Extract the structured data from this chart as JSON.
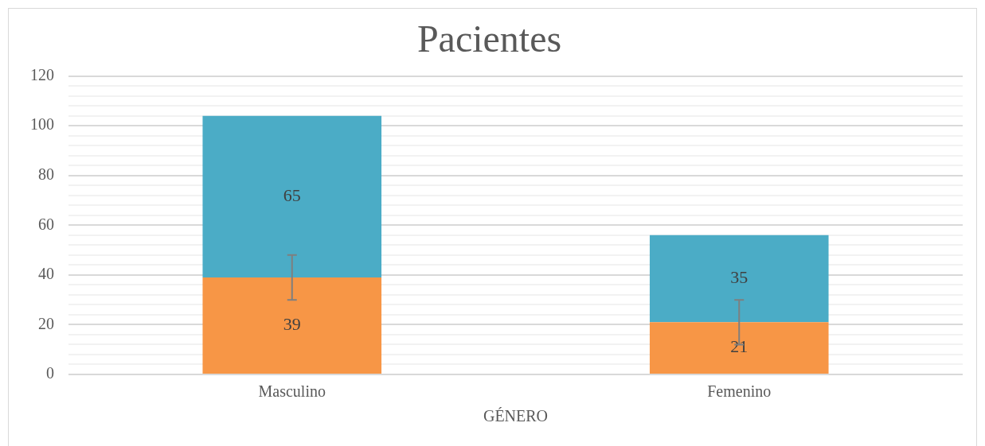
{
  "chart_data": {
    "type": "bar",
    "title": "Pacientes",
    "xlabel": "GÉNERO",
    "categories": [
      "Masculino",
      "Femenino"
    ],
    "stacked": true,
    "data_labels": true,
    "series": [
      {
        "color": "#f79646",
        "values": [
          39,
          21
        ],
        "errors": [
          9,
          9
        ]
      },
      {
        "color": "#4bacc6",
        "values": [
          65,
          35
        ]
      }
    ],
    "ylim": [
      0,
      120
    ],
    "yticks": [
      0,
      {
        "value": 4,
        "label": null
      },
      {
        "value": 8,
        "label": null
      },
      {
        "value": 12,
        "label": null
      },
      {
        "value": 16,
        "label": null
      },
      20,
      {
        "value": 24,
        "label": null
      },
      {
        "value": 28,
        "label": null
      },
      {
        "value": 32,
        "label": null
      },
      {
        "value": 36,
        "label": null
      },
      40,
      {
        "value": 44,
        "label": null
      },
      {
        "value": 48,
        "label": null
      },
      {
        "value": 52,
        "label": null
      },
      {
        "value": 56,
        "label": null
      },
      60,
      {
        "value": 64,
        "label": null
      },
      {
        "value": 68,
        "label": null
      },
      {
        "value": 72,
        "label": null
      },
      {
        "value": 76,
        "label": null
      },
      80,
      {
        "value": 84,
        "label": null
      },
      {
        "value": 88,
        "label": null
      },
      {
        "value": 92,
        "label": null
      },
      {
        "value": 96,
        "label": null
      },
      100,
      {
        "value": 104,
        "label": null
      },
      {
        "value": 108,
        "label": null
      },
      {
        "value": 112,
        "label": null
      },
      {
        "value": 116,
        "label": null
      },
      120
    ],
    "grid": "y",
    "legend": false
  }
}
